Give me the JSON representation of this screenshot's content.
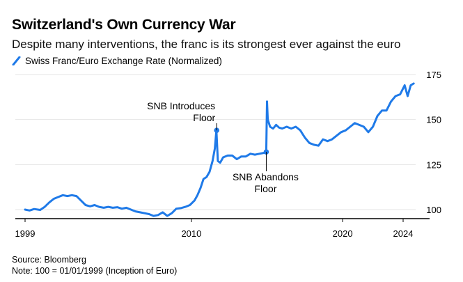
{
  "title": "Switzerland's Own Currency War",
  "subtitle": "Despite many interventions, the franc is its strongest ever against the euro",
  "legend": {
    "label": "Swiss Franc/Euro Exchange Rate (Normalized)"
  },
  "source": "Source: Bloomberg",
  "note": "Note: 100 = 01/01/1999 (Inception of Euro)",
  "colors": {
    "series": "#1f7ae8",
    "grid": "#e6e6e6",
    "axis": "#000000"
  },
  "chart_data": {
    "type": "line",
    "xlim": [
      1999.0,
      2024.7
    ],
    "ylim": [
      95,
      178
    ],
    "y_ticks": [
      100,
      125,
      150,
      175
    ],
    "x_ticks": [
      1999,
      2010,
      2020,
      2024
    ],
    "grid": true,
    "y_axis_position": "right",
    "series": [
      {
        "name": "Swiss Franc/Euro Exchange Rate (Normalized)",
        "x": [
          1999.0,
          1999.3,
          1999.6,
          2000.0,
          2000.3,
          2000.6,
          2000.9,
          2001.2,
          2001.5,
          2001.8,
          2002.1,
          2002.4,
          2002.7,
          2003.0,
          2003.3,
          2003.6,
          2003.9,
          2004.2,
          2004.5,
          2004.8,
          2005.1,
          2005.4,
          2005.7,
          2006.0,
          2006.3,
          2006.6,
          2006.9,
          2007.2,
          2007.5,
          2007.8,
          2008.1,
          2008.4,
          2008.7,
          2009.0,
          2009.3,
          2009.6,
          2009.9,
          2010.2,
          2010.4,
          2010.6,
          2010.8,
          2011.0,
          2011.2,
          2011.4,
          2011.55,
          2011.65,
          2011.75,
          2011.9,
          2012.1,
          2012.4,
          2012.7,
          2013.0,
          2013.3,
          2013.6,
          2013.9,
          2014.2,
          2014.5,
          2014.8,
          2014.95,
          2015.0,
          2015.05,
          2015.2,
          2015.4,
          2015.6,
          2015.8,
          2016.0,
          2016.3,
          2016.6,
          2016.9,
          2017.2,
          2017.5,
          2017.8,
          2018.1,
          2018.4,
          2018.7,
          2019.0,
          2019.3,
          2019.6,
          2019.9,
          2020.2,
          2020.5,
          2020.8,
          2021.1,
          2021.4,
          2021.7,
          2022.0,
          2022.3,
          2022.6,
          2022.9,
          2023.2,
          2023.5,
          2023.8,
          2024.1,
          2024.3,
          2024.5,
          2024.7
        ],
        "y": [
          100,
          99.5,
          100.3,
          99.8,
          101.5,
          104,
          106,
          107,
          108,
          107.5,
          108,
          107.5,
          105,
          102.5,
          101.8,
          102.5,
          101.5,
          101,
          101.5,
          101,
          101.3,
          100.5,
          101,
          100,
          99,
          98.5,
          98,
          97.5,
          96.5,
          97,
          98.5,
          96.5,
          98,
          100.5,
          100.8,
          101.5,
          102.5,
          105,
          108,
          112,
          117,
          118,
          121,
          127,
          134,
          144,
          127,
          126,
          129,
          130,
          130,
          128,
          129.5,
          129.5,
          131,
          130.5,
          131,
          131.5,
          132,
          160,
          150,
          146,
          145,
          147,
          145.5,
          145,
          146,
          145,
          146,
          144,
          140,
          137,
          136,
          135.5,
          139,
          138,
          139,
          141,
          143,
          144,
          146,
          148,
          147,
          146,
          143,
          146,
          152,
          155,
          155,
          160,
          163,
          164,
          169,
          163,
          169,
          170
        ]
      }
    ],
    "annotations": [
      {
        "label_lines": [
          "SNB Introduces",
          "Floor"
        ],
        "x": 2011.67,
        "y": 144,
        "label_position": "above"
      },
      {
        "label_lines": [
          "SNB Abandons",
          "Floor"
        ],
        "x": 2014.95,
        "y": 132,
        "label_position": "below"
      }
    ]
  }
}
